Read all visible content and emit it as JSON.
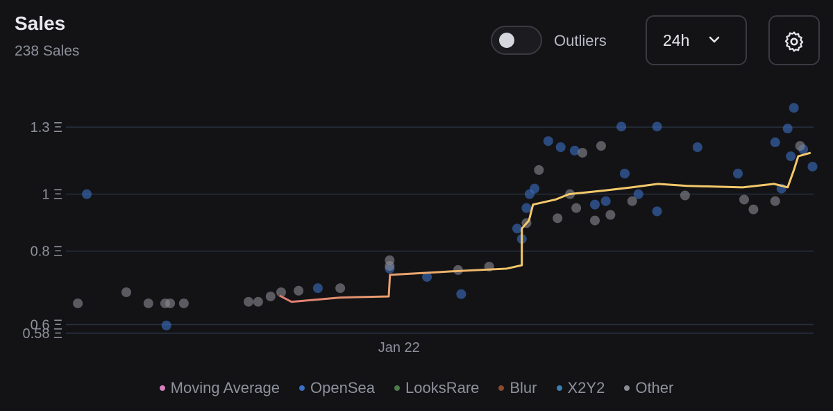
{
  "header": {
    "title": "Sales",
    "subtitle": "238 Sales",
    "toggle_label": "Outliers",
    "period": "24h"
  },
  "chart_data": {
    "type": "scatter",
    "log_y": true,
    "grid": true,
    "xlim": [
      0,
      24
    ],
    "xticks": [
      {
        "value": 10.6,
        "label": "Jan 22"
      }
    ],
    "ylim": [
      0.58,
      1.45
    ],
    "yticks": [
      {
        "value": 0.58,
        "label": "0.58 Ξ"
      },
      {
        "value": 0.6,
        "label": "0.6 Ξ"
      },
      {
        "value": 0.8,
        "label": "0.8 Ξ"
      },
      {
        "value": 1,
        "label": "1 Ξ"
      },
      {
        "value": 1.3,
        "label": "1.3 Ξ"
      }
    ],
    "series": [
      {
        "name": "Moving Average",
        "color": "#d77fc0",
        "line": true,
        "line_colors": [
          "#e07b72",
          "#f5c96a"
        ],
        "x": [
          6.76,
          7.14,
          8.71,
          10.27,
          10.31,
          12.28,
          14.06,
          14.55,
          14.55,
          14.78,
          14.91,
          15.63,
          16.07,
          17.19,
          18.08,
          18.93,
          19.87,
          21.65,
          22.66,
          23.1,
          23.3,
          23.44,
          23.84
        ],
        "values": [
          0.672,
          0.656,
          0.667,
          0.67,
          0.729,
          0.739,
          0.747,
          0.757,
          0.874,
          0.902,
          0.96,
          0.979,
          1.0,
          1.014,
          1.027,
          1.041,
          1.033,
          1.027,
          1.041,
          1.027,
          1.099,
          1.16,
          1.176
        ]
      },
      {
        "name": "OpenSea",
        "color": "#3c6fc4",
        "x": [
          0.56,
          3.12,
          7.99,
          10.3,
          11.5,
          12.6,
          14.4,
          14.55,
          14.7,
          14.8,
          14.96,
          15.4,
          15.8,
          16.25,
          16.9,
          17.25,
          17.75,
          17.86,
          18.3,
          18.9,
          18.9,
          20.2,
          21.5,
          22.7,
          22.9,
          23.1,
          23.3,
          23.2,
          23.6,
          23.9
        ],
        "values": [
          1.0,
          0.598,
          0.692,
          0.747,
          0.723,
          0.676,
          0.874,
          0.839,
          0.947,
          1.0,
          1.022,
          1.231,
          1.202,
          1.186,
          0.96,
          0.973,
          1.303,
          1.084,
          1.0,
          1.303,
          0.935,
          1.202,
          1.084,
          1.225,
          1.022,
          1.293,
          1.402,
          1.16,
          1.192,
          1.114
        ]
      },
      {
        "name": "LooksRare",
        "color": "#4f7a4a",
        "x": [],
        "values": []
      },
      {
        "name": "Blur",
        "color": "#8a4a2e",
        "x": [],
        "values": []
      },
      {
        "name": "X2Y2",
        "color": "#3b7fb0",
        "x": [],
        "values": []
      },
      {
        "name": "Other",
        "color": "#8b8b93",
        "x": [
          0.27,
          1.83,
          2.54,
          3.08,
          3.24,
          3.68,
          5.76,
          6.07,
          6.47,
          6.81,
          7.37,
          8.71,
          10.3,
          10.3,
          12.5,
          13.5,
          14.7,
          15.1,
          15.7,
          16.1,
          16.3,
          16.5,
          16.9,
          17.1,
          17.4,
          18.1,
          19.8,
          21.7,
          22.0,
          22.7,
          23.5
        ],
        "values": [
          0.652,
          0.681,
          0.652,
          0.652,
          0.652,
          0.652,
          0.656,
          0.656,
          0.67,
          0.681,
          0.685,
          0.692,
          0.772,
          0.755,
          0.743,
          0.753,
          0.893,
          1.099,
          0.91,
          1.0,
          0.947,
          1.176,
          0.902,
          1.208,
          0.922,
          0.973,
          0.995,
          0.979,
          0.942,
          0.973,
          1.208
        ]
      }
    ]
  }
}
